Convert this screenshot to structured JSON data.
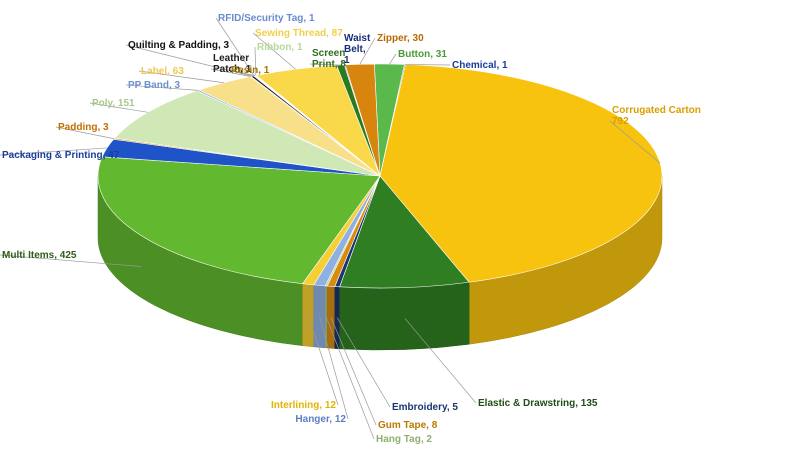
{
  "chart_data": {
    "type": "pie",
    "style": "3d",
    "legend": "none",
    "slices": [
      {
        "name": "Button",
        "value": 31,
        "text": "Button, 31",
        "color": "#5ab94a",
        "label_color": "#4a9a3a"
      },
      {
        "name": "Chemical",
        "value": 1,
        "text": "Chemical, 1",
        "color": "#1a3d9c",
        "label_color": "#1a3d9c"
      },
      {
        "name": "Corrugated Carton",
        "value": 792,
        "text": "Corrugated Carton\n792",
        "color": "#f7c30f",
        "label_color": "#d99e00"
      },
      {
        "name": "Elastic & Drawstring",
        "value": 135,
        "text": "Elastic & Drawstring, 135",
        "color": "#2f7f22",
        "label_color": "#1f4d14"
      },
      {
        "name": "Embroidery",
        "value": 5,
        "text": "Embroidery, 5",
        "color": "#1a3570",
        "label_color": "#1a3570"
      },
      {
        "name": "Gum Tape",
        "value": 8,
        "text": "Gum Tape, 8",
        "color": "#d88c0f",
        "label_color": "#b87a00"
      },
      {
        "name": "Hang Tag",
        "value": 2,
        "text": "Hang Tag, 2",
        "color": "#aed38f",
        "label_color": "#8fb070"
      },
      {
        "name": "Hanger",
        "value": 12,
        "text": "Hanger, 12",
        "color": "#8fb0e3",
        "label_color": "#5b7fc4"
      },
      {
        "name": "Interlining",
        "value": 12,
        "text": "Interlining, 12",
        "color": "#f5cf33",
        "label_color": "#e0b400"
      },
      {
        "name": "Multi Items",
        "value": 425,
        "text": "Multi Items, 425",
        "color": "#62b82f",
        "label_color": "#2f5e1a"
      },
      {
        "name": "Packaging & Printing",
        "value": 47,
        "text": "Packaging & Printing, 47",
        "color": "#1e54c8",
        "label_color": "#1a3d9c"
      },
      {
        "name": "Padding",
        "value": 3,
        "text": "Padding, 3",
        "color": "#e08a0c",
        "label_color": "#c27000"
      },
      {
        "name": "Poly",
        "value": 151,
        "text": "Poly, 151",
        "color": "#cfe8b5",
        "label_color": "#a9c98c"
      },
      {
        "name": "PP Band",
        "value": 3,
        "text": "PP Band, 3",
        "color": "#8fb0e3",
        "label_color": "#6c8fcf"
      },
      {
        "name": "Label",
        "value": 63,
        "text": "Label, 63",
        "color": "#f8e08a",
        "label_color": "#f0c850"
      },
      {
        "name": "Leather Patch",
        "value": 1,
        "text": "Leather\nPatch, 1",
        "color": "#3a3a3a",
        "label_color": "#222222"
      },
      {
        "name": "Quilting & Padding",
        "value": 3,
        "text": "Quilting & Padding, 3",
        "color": "#202020",
        "label_color": "#111111"
      },
      {
        "name": "RFID/Security Tag",
        "value": 1,
        "text": "RFID/Security Tag, 1",
        "color": "#7a9ad8",
        "label_color": "#6a8ad0"
      },
      {
        "name": "Resin",
        "value": 1,
        "text": "Resin, 1",
        "color": "#c79a00",
        "label_color": "#a07800"
      },
      {
        "name": "Ribbon",
        "value": 1,
        "text": "Ribbon, 1",
        "color": "#c8e6a8",
        "label_color": "#b8d898"
      },
      {
        "name": "Sewing Thread",
        "value": 87,
        "text": "Sewing Thread, 87",
        "color": "#f9d84a",
        "label_color": "#f0d04a"
      },
      {
        "name": "Screen Print",
        "value": 8,
        "text": "Screen\nPrint, 8",
        "color": "#2a7a1f",
        "label_color": "#2f6e1f"
      },
      {
        "name": "Waist Belt",
        "value": 1,
        "text": "Waist\nBelt,\n1",
        "color": "#1a2e78",
        "label_color": "#1a2e78"
      },
      {
        "name": "Zipper",
        "value": 30,
        "text": "Zipper, 30",
        "color": "#d8850f",
        "label_color": "#b86a00"
      }
    ]
  }
}
